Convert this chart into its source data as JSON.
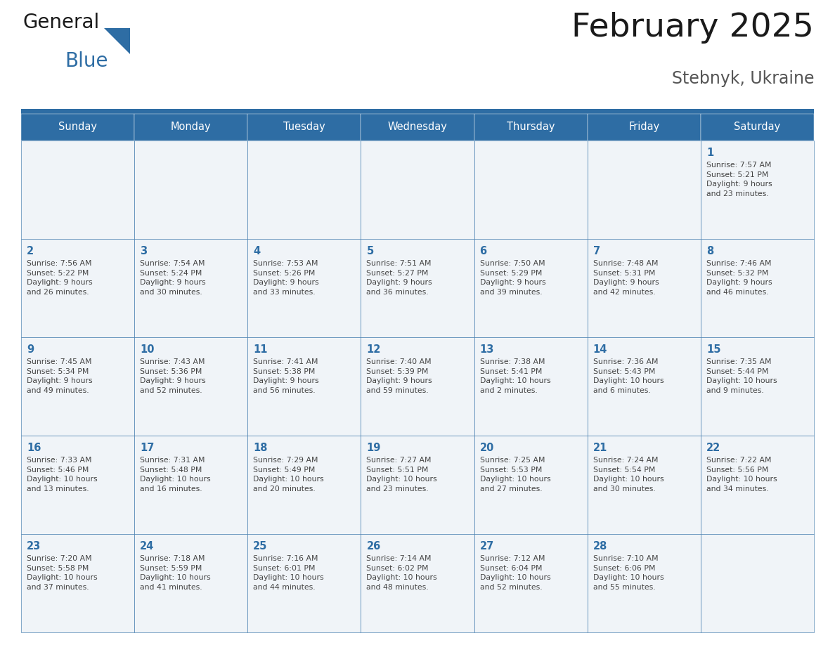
{
  "title": "February 2025",
  "subtitle": "Stebnyk, Ukraine",
  "days_of_week": [
    "Sunday",
    "Monday",
    "Tuesday",
    "Wednesday",
    "Thursday",
    "Friday",
    "Saturday"
  ],
  "header_bg": "#2E6DA4",
  "header_text_color": "#FFFFFF",
  "cell_bg": "#F0F4F8",
  "border_color": "#2E6DA4",
  "text_color": "#444444",
  "day_number_color": "#2E6DA4",
  "title_color": "#1A1A1A",
  "subtitle_color": "#555555",
  "logo_general_color": "#1A1A1A",
  "logo_blue_color": "#2E6DA4",
  "logo_triangle_color": "#2E6DA4",
  "weeks": [
    [
      {
        "day": null,
        "info": null
      },
      {
        "day": null,
        "info": null
      },
      {
        "day": null,
        "info": null
      },
      {
        "day": null,
        "info": null
      },
      {
        "day": null,
        "info": null
      },
      {
        "day": null,
        "info": null
      },
      {
        "day": 1,
        "info": "Sunrise: 7:57 AM\nSunset: 5:21 PM\nDaylight: 9 hours\nand 23 minutes."
      }
    ],
    [
      {
        "day": 2,
        "info": "Sunrise: 7:56 AM\nSunset: 5:22 PM\nDaylight: 9 hours\nand 26 minutes."
      },
      {
        "day": 3,
        "info": "Sunrise: 7:54 AM\nSunset: 5:24 PM\nDaylight: 9 hours\nand 30 minutes."
      },
      {
        "day": 4,
        "info": "Sunrise: 7:53 AM\nSunset: 5:26 PM\nDaylight: 9 hours\nand 33 minutes."
      },
      {
        "day": 5,
        "info": "Sunrise: 7:51 AM\nSunset: 5:27 PM\nDaylight: 9 hours\nand 36 minutes."
      },
      {
        "day": 6,
        "info": "Sunrise: 7:50 AM\nSunset: 5:29 PM\nDaylight: 9 hours\nand 39 minutes."
      },
      {
        "day": 7,
        "info": "Sunrise: 7:48 AM\nSunset: 5:31 PM\nDaylight: 9 hours\nand 42 minutes."
      },
      {
        "day": 8,
        "info": "Sunrise: 7:46 AM\nSunset: 5:32 PM\nDaylight: 9 hours\nand 46 minutes."
      }
    ],
    [
      {
        "day": 9,
        "info": "Sunrise: 7:45 AM\nSunset: 5:34 PM\nDaylight: 9 hours\nand 49 minutes."
      },
      {
        "day": 10,
        "info": "Sunrise: 7:43 AM\nSunset: 5:36 PM\nDaylight: 9 hours\nand 52 minutes."
      },
      {
        "day": 11,
        "info": "Sunrise: 7:41 AM\nSunset: 5:38 PM\nDaylight: 9 hours\nand 56 minutes."
      },
      {
        "day": 12,
        "info": "Sunrise: 7:40 AM\nSunset: 5:39 PM\nDaylight: 9 hours\nand 59 minutes."
      },
      {
        "day": 13,
        "info": "Sunrise: 7:38 AM\nSunset: 5:41 PM\nDaylight: 10 hours\nand 2 minutes."
      },
      {
        "day": 14,
        "info": "Sunrise: 7:36 AM\nSunset: 5:43 PM\nDaylight: 10 hours\nand 6 minutes."
      },
      {
        "day": 15,
        "info": "Sunrise: 7:35 AM\nSunset: 5:44 PM\nDaylight: 10 hours\nand 9 minutes."
      }
    ],
    [
      {
        "day": 16,
        "info": "Sunrise: 7:33 AM\nSunset: 5:46 PM\nDaylight: 10 hours\nand 13 minutes."
      },
      {
        "day": 17,
        "info": "Sunrise: 7:31 AM\nSunset: 5:48 PM\nDaylight: 10 hours\nand 16 minutes."
      },
      {
        "day": 18,
        "info": "Sunrise: 7:29 AM\nSunset: 5:49 PM\nDaylight: 10 hours\nand 20 minutes."
      },
      {
        "day": 19,
        "info": "Sunrise: 7:27 AM\nSunset: 5:51 PM\nDaylight: 10 hours\nand 23 minutes."
      },
      {
        "day": 20,
        "info": "Sunrise: 7:25 AM\nSunset: 5:53 PM\nDaylight: 10 hours\nand 27 minutes."
      },
      {
        "day": 21,
        "info": "Sunrise: 7:24 AM\nSunset: 5:54 PM\nDaylight: 10 hours\nand 30 minutes."
      },
      {
        "day": 22,
        "info": "Sunrise: 7:22 AM\nSunset: 5:56 PM\nDaylight: 10 hours\nand 34 minutes."
      }
    ],
    [
      {
        "day": 23,
        "info": "Sunrise: 7:20 AM\nSunset: 5:58 PM\nDaylight: 10 hours\nand 37 minutes."
      },
      {
        "day": 24,
        "info": "Sunrise: 7:18 AM\nSunset: 5:59 PM\nDaylight: 10 hours\nand 41 minutes."
      },
      {
        "day": 25,
        "info": "Sunrise: 7:16 AM\nSunset: 6:01 PM\nDaylight: 10 hours\nand 44 minutes."
      },
      {
        "day": 26,
        "info": "Sunrise: 7:14 AM\nSunset: 6:02 PM\nDaylight: 10 hours\nand 48 minutes."
      },
      {
        "day": 27,
        "info": "Sunrise: 7:12 AM\nSunset: 6:04 PM\nDaylight: 10 hours\nand 52 minutes."
      },
      {
        "day": 28,
        "info": "Sunrise: 7:10 AM\nSunset: 6:06 PM\nDaylight: 10 hours\nand 55 minutes."
      },
      {
        "day": null,
        "info": null
      }
    ]
  ]
}
